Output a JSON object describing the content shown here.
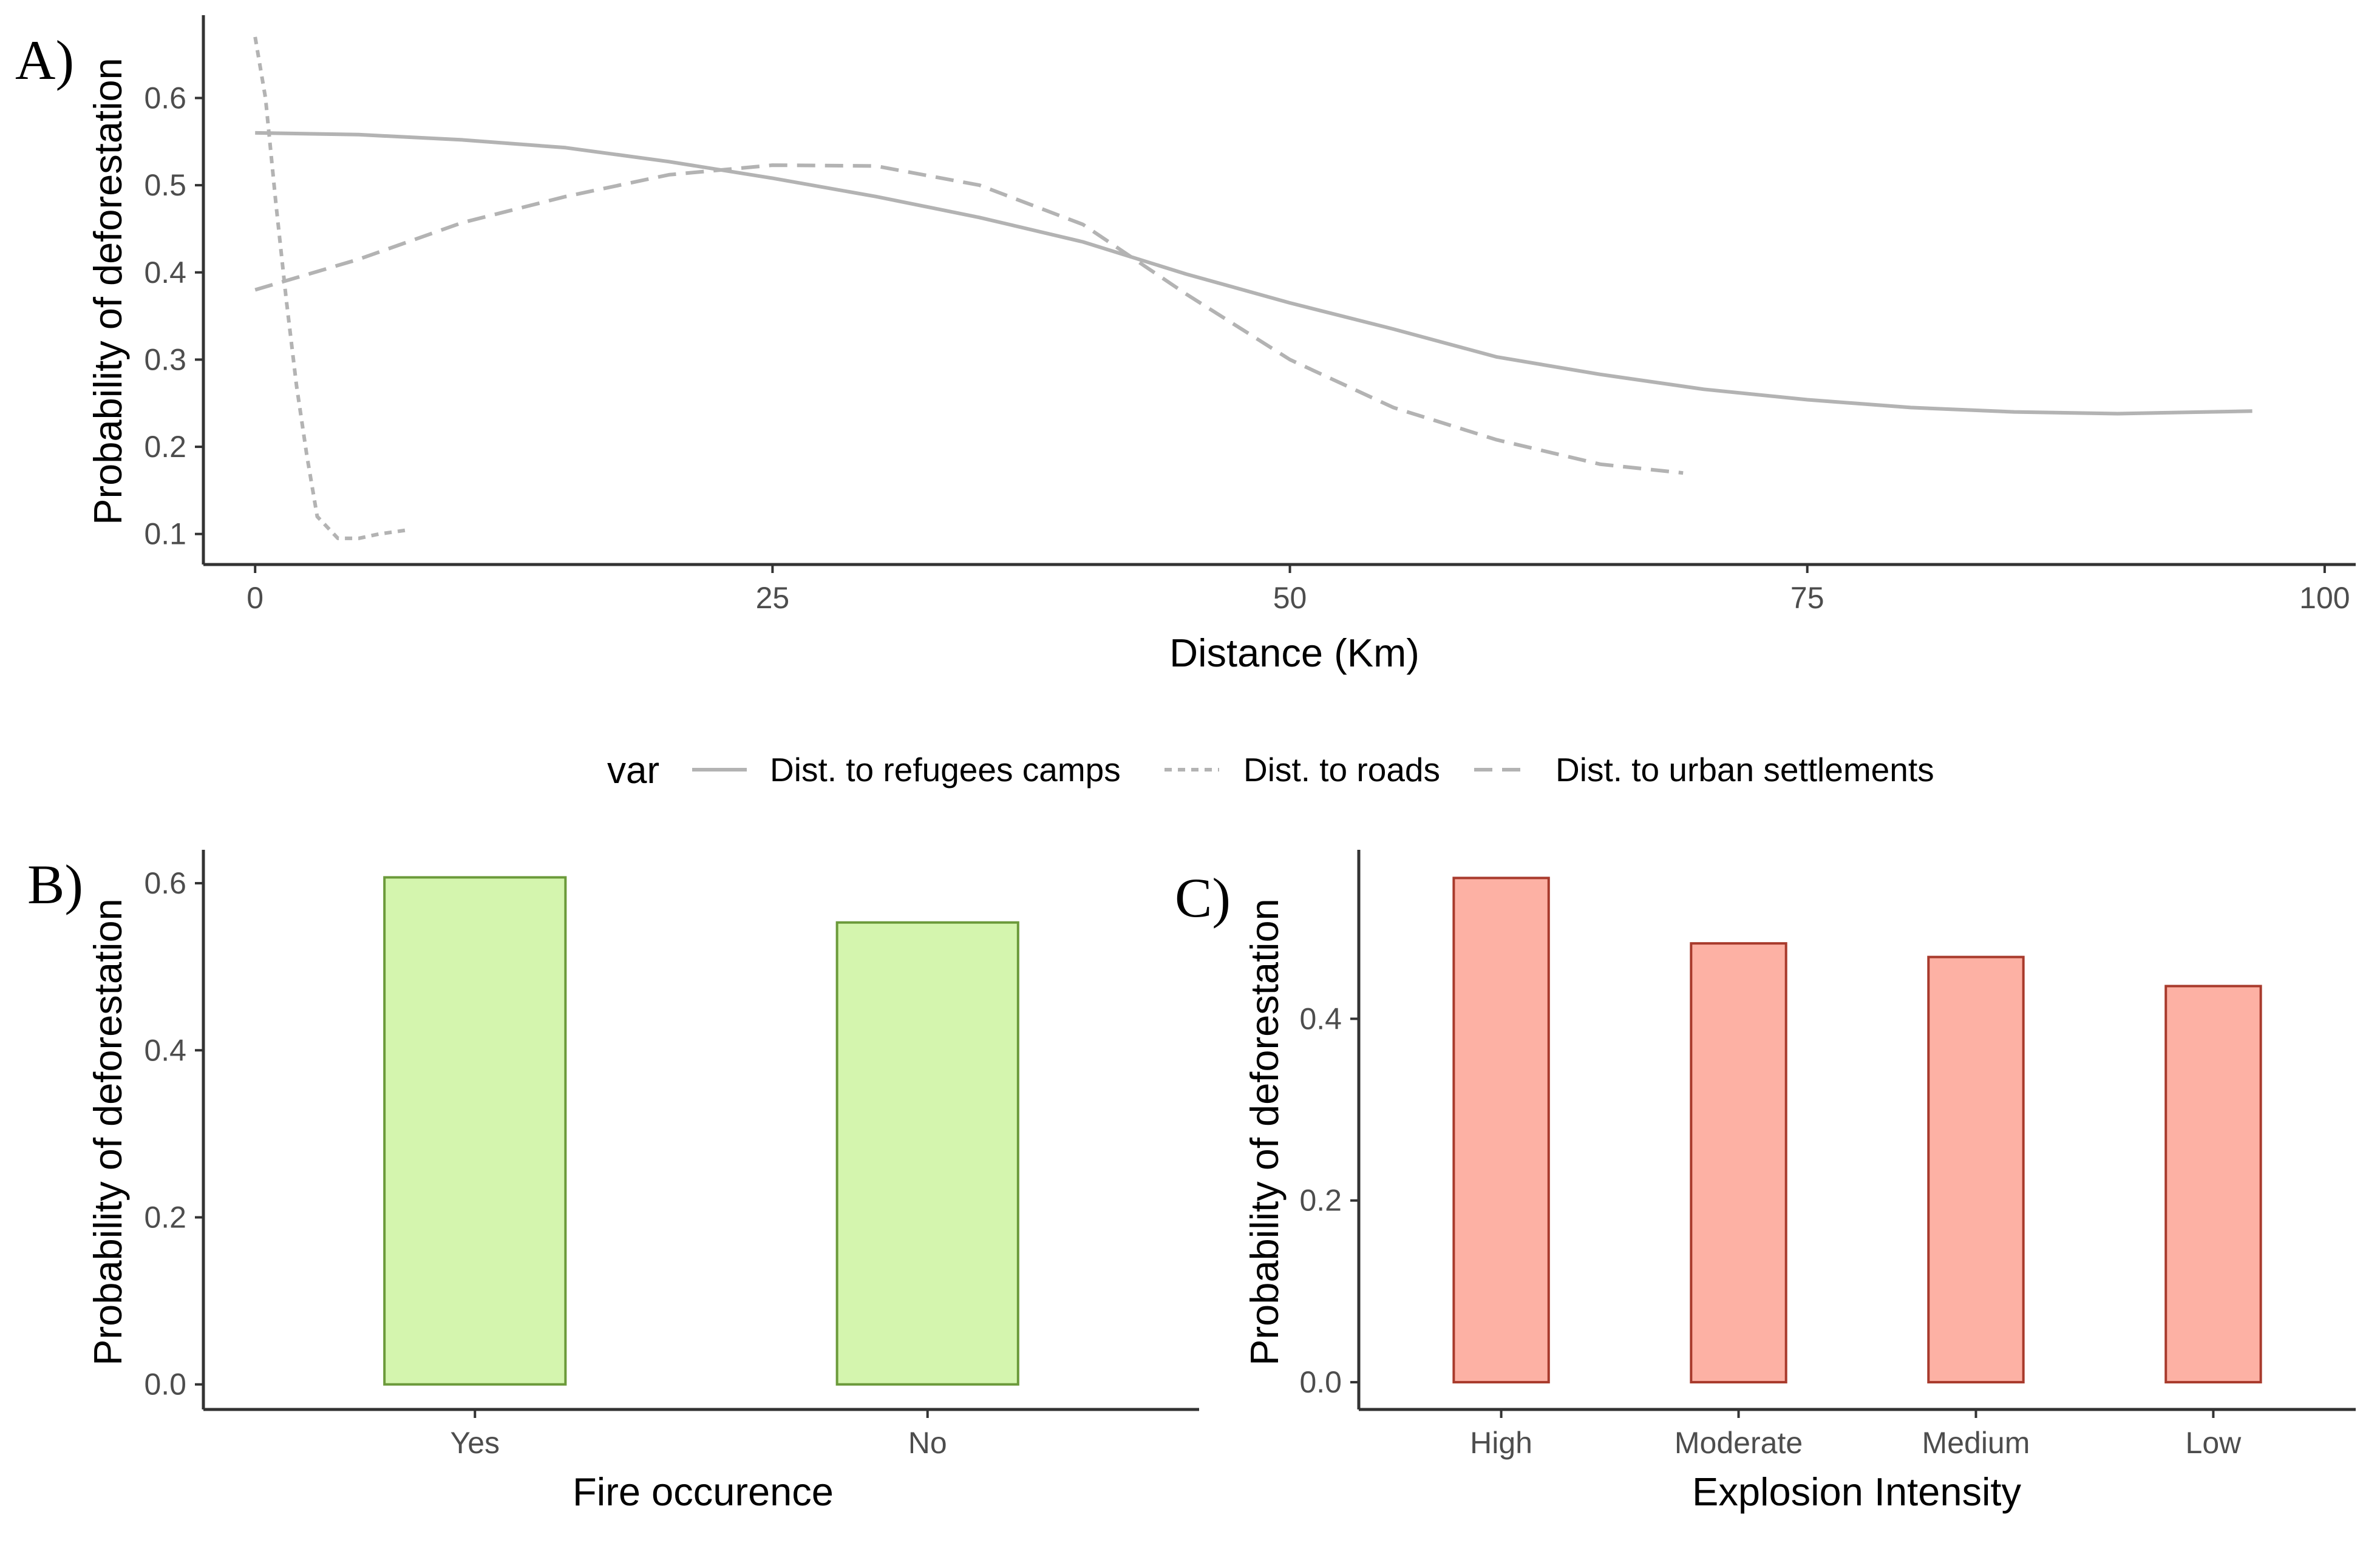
{
  "chart_data": [
    {
      "panel": "A)",
      "type": "line",
      "xlabel": "Distance (Km)",
      "ylabel": "Probability of deforestation",
      "xlim": [
        -2.5,
        101.5
      ],
      "ylim": [
        0.065,
        0.695
      ],
      "xticks": [
        0,
        25,
        50,
        75,
        100
      ],
      "xtick_labels": [
        "0",
        "25",
        "50",
        "75",
        "100"
      ],
      "yticks": [
        0.1,
        0.2,
        0.3,
        0.4,
        0.5,
        0.6
      ],
      "ytick_labels": [
        "0.1",
        "0.2",
        "0.3",
        "0.4",
        "0.5",
        "0.6"
      ],
      "grid": false,
      "legend": {
        "title": "var",
        "position": "middle",
        "entries": [
          "Dist. to refugees camps",
          "Dist. to roads",
          "Dist. to urban settlements"
        ]
      },
      "series": [
        {
          "name": "Dist. to refugees camps",
          "line_style": "solid",
          "color": "#b3b3b3",
          "points": [
            [
              0,
              0.56
            ],
            [
              5,
              0.558
            ],
            [
              10,
              0.552
            ],
            [
              15,
              0.543
            ],
            [
              20,
              0.527
            ],
            [
              25,
              0.508
            ],
            [
              30,
              0.487
            ],
            [
              35,
              0.463
            ],
            [
              40,
              0.435
            ],
            [
              45,
              0.398
            ],
            [
              50,
              0.365
            ],
            [
              55,
              0.335
            ],
            [
              60,
              0.303
            ],
            [
              65,
              0.283
            ],
            [
              70,
              0.266
            ],
            [
              75,
              0.254
            ],
            [
              80,
              0.245
            ],
            [
              85,
              0.24
            ],
            [
              90,
              0.238
            ],
            [
              96.5,
              0.241
            ]
          ]
        },
        {
          "name": "Dist. to roads",
          "line_style": "dotted",
          "color": "#b3b3b3",
          "points": [
            [
              0,
              0.67
            ],
            [
              0.5,
              0.6
            ],
            [
              1,
              0.48
            ],
            [
              1.5,
              0.37
            ],
            [
              2,
              0.27
            ],
            [
              2.5,
              0.19
            ],
            [
              3,
              0.12
            ],
            [
              4,
              0.095
            ],
            [
              5,
              0.095
            ],
            [
              6,
              0.1
            ],
            [
              7.5,
              0.105
            ]
          ]
        },
        {
          "name": "Dist. to urban settlements",
          "line_style": "dashed",
          "color": "#b3b3b3",
          "points": [
            [
              0,
              0.38
            ],
            [
              5,
              0.415
            ],
            [
              10,
              0.457
            ],
            [
              15,
              0.487
            ],
            [
              20,
              0.512
            ],
            [
              25,
              0.523
            ],
            [
              30,
              0.522
            ],
            [
              35,
              0.5
            ],
            [
              40,
              0.455
            ],
            [
              45,
              0.375
            ],
            [
              50,
              0.3
            ],
            [
              55,
              0.245
            ],
            [
              60,
              0.208
            ],
            [
              65,
              0.18
            ],
            [
              69,
              0.17
            ]
          ]
        }
      ]
    },
    {
      "panel": "B)",
      "type": "bar",
      "xlabel": "Fire occurence",
      "ylabel": "Probability of deforestation",
      "categories": [
        "Yes",
        "No"
      ],
      "values": [
        0.607,
        0.553
      ],
      "ylim": [
        -0.03,
        0.64
      ],
      "yticks": [
        0.0,
        0.2,
        0.4,
        0.6
      ],
      "ytick_labels": [
        "0.0",
        "0.2",
        "0.4",
        "0.6"
      ],
      "fill": "#d4f5ae",
      "stroke": "#6b9a3a",
      "grid": false
    },
    {
      "panel": "C)",
      "type": "bar",
      "xlabel": "Explosion Intensity",
      "ylabel": "Probability of deforestation",
      "categories": [
        "High",
        "Moderate",
        "Medium",
        "Low"
      ],
      "values": [
        0.555,
        0.483,
        0.468,
        0.436
      ],
      "ylim": [
        -0.03,
        0.586
      ],
      "yticks": [
        0.0,
        0.2,
        0.4
      ],
      "ytick_labels": [
        "0.0",
        "0.2",
        "0.4"
      ],
      "fill": "#fdb1a4",
      "stroke": "#a83a2c",
      "grid": false
    }
  ]
}
